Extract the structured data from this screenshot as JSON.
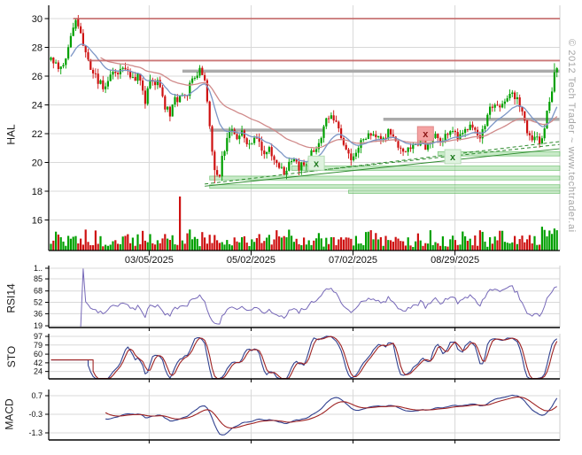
{
  "watermark": "© 2012 Tech Trader ~ www.techtrader.ai",
  "panel_labels": {
    "price": "HAL",
    "rsi": "RSI14",
    "sto": "STO",
    "macd": "MACD"
  },
  "colors": {
    "up": "#00A000",
    "down": "#CE1111",
    "ma_fast": "#7C96C6",
    "ma_slow": "#D08A8A",
    "resistance": "#C26060",
    "level_gray": "#ABABAB",
    "trend_green": "#2E8B2E",
    "band_fill": "rgba(146,214,146,0.5)",
    "band_edge": "rgba(96,186,96,0.75)",
    "rsi_line": "#7668B8",
    "sto_k": "#31418F",
    "sto_d": "#9E2222",
    "macd_line": "#31418F",
    "macd_signal": "#9E2222",
    "grid": "#D8D8D8",
    "panel_edge": "#CFCFCF",
    "axis": "#000000",
    "text": "#111111",
    "marker_red_bg": "#F4A2A2",
    "marker_red_edge": "#E08888",
    "marker_red_fg": "#8B1515",
    "marker_green_bg": "#DFF2DF",
    "marker_green_edge": "#B4DCB4",
    "marker_green_fg": "#1F7A1F",
    "watermark_gray": "#A6A6A6"
  },
  "chart_data": [
    {
      "type": "candlestick",
      "title": "HAL daily price with volume",
      "ylabel": "HAL",
      "grid": true,
      "legend": "none",
      "y_ticks": [
        30,
        28,
        26,
        24,
        22,
        20,
        18,
        16
      ],
      "y_range": [
        15,
        31
      ],
      "x_tick_labels": [
        "03/05/2025",
        "05/02/2025",
        "07/02/2025",
        "08/29/2025"
      ],
      "x_tick_bars": [
        39.6,
        80.7,
        121.8,
        162.9
      ],
      "bars": 205,
      "price_keypoints": [
        [
          0,
          27.2
        ],
        [
          2,
          27.0
        ],
        [
          4,
          26.4
        ],
        [
          6,
          27.3
        ],
        [
          8,
          28.6
        ],
        [
          10,
          29.9
        ],
        [
          12,
          29.0
        ],
        [
          14,
          27.5
        ],
        [
          16,
          26.3
        ],
        [
          18,
          26.0
        ],
        [
          21,
          25.2
        ],
        [
          23,
          25.9
        ],
        [
          26,
          26.1
        ],
        [
          30,
          26.5
        ],
        [
          32,
          25.8
        ],
        [
          35,
          26.0
        ],
        [
          38,
          24.3
        ],
        [
          40,
          25.7
        ],
        [
          43,
          25.5
        ],
        [
          46,
          23.9
        ],
        [
          48,
          23.4
        ],
        [
          50,
          24.3
        ],
        [
          53,
          24.5
        ],
        [
          55,
          24.9
        ],
        [
          57,
          25.8
        ],
        [
          60,
          26.3
        ],
        [
          62,
          25.9
        ],
        [
          63,
          24.0
        ],
        [
          65,
          20.8
        ],
        [
          66,
          19.2
        ],
        [
          68,
          18.9
        ],
        [
          69,
          20.2
        ],
        [
          71,
          21.5
        ],
        [
          73,
          22.2
        ],
        [
          75,
          21.8
        ],
        [
          77,
          22.1
        ],
        [
          79,
          21.2
        ],
        [
          81,
          21.6
        ],
        [
          83,
          21.9
        ],
        [
          85,
          20.7
        ],
        [
          88,
          20.9
        ],
        [
          90,
          20.2
        ],
        [
          92,
          19.8
        ],
        [
          94,
          19.3
        ],
        [
          96,
          19.9
        ],
        [
          98,
          20.3
        ],
        [
          100,
          19.7
        ],
        [
          103,
          19.9
        ],
        [
          105,
          20.6
        ],
        [
          107,
          21.0
        ],
        [
          109,
          21.7
        ],
        [
          111,
          22.9
        ],
        [
          113,
          23.4
        ],
        [
          115,
          22.6
        ],
        [
          117,
          21.8
        ],
        [
          119,
          21.0
        ],
        [
          121,
          20.3
        ],
        [
          123,
          20.8
        ],
        [
          125,
          21.3
        ],
        [
          128,
          21.9
        ],
        [
          130,
          22.2
        ],
        [
          132,
          21.6
        ],
        [
          134,
          21.5
        ],
        [
          136,
          22.2
        ],
        [
          138,
          21.9
        ],
        [
          140,
          21.3
        ],
        [
          142,
          20.8
        ],
        [
          145,
          21.0
        ],
        [
          147,
          21.3
        ],
        [
          149,
          21.5
        ],
        [
          151,
          21.1
        ],
        [
          153,
          21.4
        ],
        [
          155,
          21.8
        ],
        [
          157,
          21.5
        ],
        [
          160,
          21.9
        ],
        [
          162,
          22.0
        ],
        [
          165,
          21.8
        ],
        [
          167,
          22.2
        ],
        [
          169,
          22.4
        ],
        [
          171,
          22.1
        ],
        [
          173,
          21.9
        ],
        [
          175,
          22.8
        ],
        [
          177,
          23.7
        ],
        [
          179,
          24.2
        ],
        [
          182,
          24.0
        ],
        [
          184,
          24.7
        ],
        [
          186,
          25.0
        ],
        [
          188,
          24.3
        ],
        [
          190,
          23.6
        ],
        [
          192,
          22.2
        ],
        [
          194,
          21.3
        ],
        [
          196,
          21.9
        ],
        [
          197,
          21.5
        ],
        [
          199,
          22.4
        ],
        [
          200,
          23.4
        ],
        [
          202,
          25.0
        ],
        [
          203,
          26.0
        ],
        [
          204,
          26.4
        ]
      ],
      "overlays": {
        "resistance_lines": [
          {
            "price": 30.0,
            "from_bar": 9
          },
          {
            "price": 27.08,
            "from_bar": 15
          }
        ],
        "gray_levels": [
          {
            "price": 26.35,
            "from_bar": 53,
            "to_bar": 205
          },
          {
            "price": 22.25,
            "from_bar": 64,
            "to_bar": 110
          },
          {
            "price": 23.0,
            "from_bar": 134,
            "to_bar": 205
          }
        ],
        "trend_lines": [
          {
            "from": [
              62,
              18.35
            ],
            "to": [
              205,
              20.95
            ],
            "style": "solid"
          },
          {
            "from": [
              62,
              18.5
            ],
            "to": [
              205,
              21.45
            ],
            "style": "dashed"
          },
          {
            "from": [
              100,
              19.3
            ],
            "to": [
              205,
              21.25
            ],
            "style": "dashed"
          }
        ],
        "support_bands": [
          {
            "low": 20.45,
            "high": 20.75,
            "from_bar": 156
          },
          {
            "low": 19.45,
            "high": 19.75,
            "from_bar": 97
          },
          {
            "low": 18.78,
            "high": 19.05,
            "from_bar": 64
          },
          {
            "low": 18.2,
            "high": 18.45,
            "from_bar": 64
          },
          {
            "low": 17.85,
            "high": 18.08,
            "from_bar": 120
          }
        ],
        "markers": [
          {
            "bar": 107,
            "price": 19.95,
            "color": "green",
            "label": "x"
          },
          {
            "bar": 151,
            "price": 22.0,
            "color": "red",
            "label": "x"
          },
          {
            "bar": 162,
            "price": 20.4,
            "color": "green",
            "label": "x"
          }
        ]
      },
      "volume": {
        "spike_bar": 52,
        "spike_height": 61,
        "base_min": 4,
        "base_max": 26
      }
    },
    {
      "type": "line",
      "indicator": "RSI14",
      "title": "Relative Strength Index (14)",
      "y_tick_labels": [
        "1..",
        "85",
        "68",
        "52",
        "36",
        "19"
      ],
      "y_tick_values": [
        100,
        85,
        68,
        52,
        36,
        19
      ],
      "period": 14,
      "start_artifact": {
        "bar": 12,
        "from": 2,
        "to": 99
      }
    },
    {
      "type": "line",
      "indicator": "STO",
      "title": "Stochastic Oscillator (14,3,3)",
      "y_tick_labels": [
        "97",
        "79",
        "60",
        "42",
        "24"
      ],
      "y_tick_values": [
        97,
        79,
        60,
        42,
        24
      ],
      "k_period": 14,
      "k_smooth": 3,
      "d_period": 3,
      "flat_until_bar": 15,
      "flat_value": 48
    },
    {
      "type": "line",
      "indicator": "MACD",
      "title": "MACD (12,26,9)",
      "y_tick_labels": [
        "0.7",
        "-0.3",
        "-1.3"
      ],
      "y_tick_values": [
        0.7,
        -0.3,
        -1.3
      ],
      "fast": 12,
      "slow": 26,
      "signal": 9,
      "start_bar": 22
    }
  ]
}
